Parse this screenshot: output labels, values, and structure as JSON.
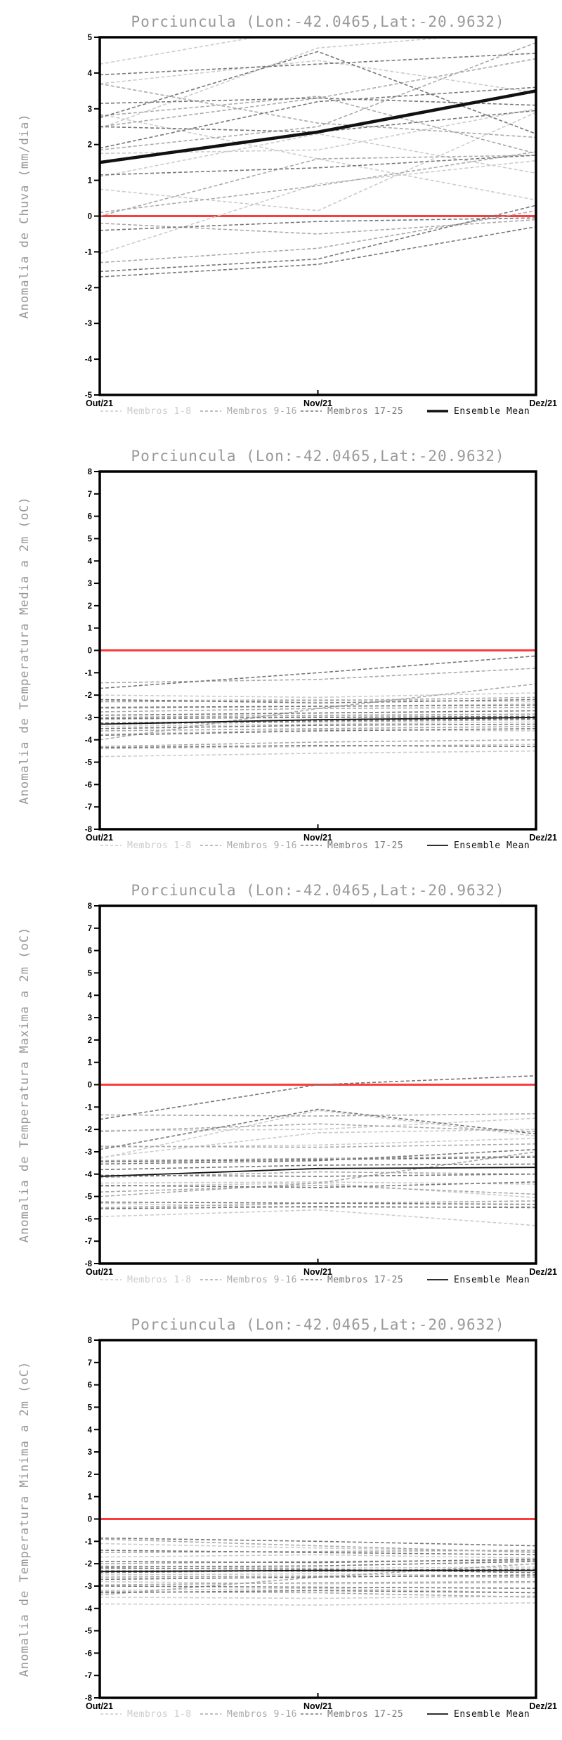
{
  "page": {
    "title": "Porciuncula (Lon:-42.0465,Lat:-20.9632)"
  },
  "legend": {
    "labels": [
      "Membros 1-8",
      "Membros 9-16",
      "Membros 17-25",
      "Ensemble Mean"
    ],
    "member_colors": [
      "#cccccc",
      "#aaaaaa",
      "#777777"
    ],
    "mean_color": "#111111"
  },
  "chart_data": [
    {
      "type": "line",
      "title": "Porciuncula (Lon:-42.0465,Lat:-20.9632)",
      "ylabel": "Anomalia de Chuva (mm/dia)",
      "ylim": [
        -5,
        5
      ],
      "ytick_step": 1,
      "x": [
        "Out/21",
        "Nov/21",
        "Dez/21"
      ],
      "grid": false,
      "legend_position": "bottom",
      "zero_line_color": "#fa3c3c",
      "mean_style": "thick",
      "series": [
        {
          "name": "Membros 1-8",
          "color": "#cccccc",
          "members": [
            [
              4.25,
              5.3,
              6.2
            ],
            [
              3.7,
              4.35,
              3.45
            ],
            [
              2.85,
              1.6,
              0.45
            ],
            [
              2.45,
              4.7,
              5.2
            ],
            [
              1.75,
              1.85,
              3.0
            ],
            [
              1.1,
              2.3,
              1.2
            ],
            [
              0.75,
              0.15,
              2.9
            ],
            [
              -1.05,
              0.9,
              1.55
            ]
          ]
        },
        {
          "name": "Membros 9-16",
          "color": "#aaaaaa",
          "members": [
            [
              2.8,
              3.35,
              1.75
            ],
            [
              2.5,
              3.3,
              4.4
            ],
            [
              0.1,
              0.85,
              1.8
            ],
            [
              -0.2,
              -0.5,
              -0.1
            ],
            [
              -1.3,
              -0.9,
              0.15
            ],
            [
              3.7,
              2.6,
              2.2
            ],
            [
              0.0,
              1.6,
              1.7
            ],
            [
              1.85,
              2.5,
              4.85
            ]
          ]
        },
        {
          "name": "Membros 17-25",
          "color": "#777777",
          "members": [
            [
              3.95,
              4.25,
              4.55
            ],
            [
              3.15,
              3.3,
              3.1
            ],
            [
              2.75,
              4.6,
              2.3
            ],
            [
              2.5,
              2.35,
              2.95
            ],
            [
              1.15,
              1.35,
              1.7
            ],
            [
              -0.4,
              -0.15,
              -0.05
            ],
            [
              -1.55,
              -1.2,
              0.3
            ],
            [
              -1.7,
              -1.35,
              -0.3
            ],
            [
              1.9,
              3.2,
              3.6
            ]
          ]
        }
      ],
      "ensemble_mean": {
        "name": "Ensemble Mean",
        "values": [
          1.5,
          2.35,
          3.5
        ]
      }
    },
    {
      "type": "line",
      "title": "Porciuncula (Lon:-42.0465,Lat:-20.9632)",
      "ylabel": "Anomalia de Temperatura Media a 2m (oC)",
      "ylim": [
        -8,
        8
      ],
      "ytick_step": 1,
      "x": [
        "Out/21",
        "Nov/21",
        "Dez/21"
      ],
      "grid": false,
      "legend_position": "bottom",
      "zero_line_color": "#fa3c3c",
      "mean_style": "thin",
      "series": [
        {
          "name": "Membros 1-8",
          "color": "#cccccc",
          "members": [
            [
              -2.0,
              -2.1,
              -1.9
            ],
            [
              -2.25,
              -2.2,
              -2.3
            ],
            [
              -2.6,
              -2.5,
              -2.4
            ],
            [
              -3.1,
              -2.95,
              -2.85
            ],
            [
              -3.4,
              -3.3,
              -3.2
            ],
            [
              -3.75,
              -3.55,
              -3.6
            ],
            [
              -4.4,
              -4.3,
              -4.2
            ],
            [
              -4.75,
              -4.6,
              -4.5
            ]
          ]
        },
        {
          "name": "Membros 9-16",
          "color": "#aaaaaa",
          "members": [
            [
              -1.45,
              -1.3,
              -0.8
            ],
            [
              -2.3,
              -2.25,
              -2.1
            ],
            [
              -2.75,
              -2.6,
              -2.55
            ],
            [
              -3.0,
              -2.9,
              -2.85
            ],
            [
              -3.3,
              -3.2,
              -3.1
            ],
            [
              -3.6,
              -3.5,
              -3.4
            ],
            [
              -4.3,
              -4.1,
              -4.0
            ],
            [
              -4.0,
              -2.6,
              -1.5
            ]
          ]
        },
        {
          "name": "Membros 17-25",
          "color": "#777777",
          "members": [
            [
              -1.7,
              -1.0,
              -0.25
            ],
            [
              -2.2,
              -2.35,
              -2.2
            ],
            [
              -2.55,
              -2.5,
              -2.45
            ],
            [
              -2.9,
              -2.8,
              -2.7
            ],
            [
              -3.05,
              -3.0,
              -2.95
            ],
            [
              -3.25,
              -3.15,
              -3.05
            ],
            [
              -3.5,
              -3.35,
              -3.3
            ],
            [
              -3.8,
              -3.6,
              -3.5
            ],
            [
              -4.35,
              -4.25,
              -4.3
            ]
          ]
        }
      ],
      "ensemble_mean": {
        "name": "Ensemble Mean",
        "values": [
          -3.3,
          -3.1,
          -3.0
        ]
      }
    },
    {
      "type": "line",
      "title": "Porciuncula (Lon:-42.0465,Lat:-20.9632)",
      "ylabel": "Anomalia de Temperatura Maxima a 2m (oC)",
      "ylim": [
        -8,
        8
      ],
      "ytick_step": 1,
      "x": [
        "Out/21",
        "Nov/21",
        "Dez/21"
      ],
      "grid": false,
      "legend_position": "bottom",
      "zero_line_color": "#fa3c3c",
      "mean_style": "thin",
      "series": [
        {
          "name": "Membros 1-8",
          "color": "#cccccc",
          "members": [
            [
              -3.3,
              -1.15,
              -2.3
            ],
            [
              -2.05,
              -2.0,
              -1.5
            ],
            [
              -3.25,
              -2.15,
              -2.0
            ],
            [
              -4.55,
              -4.4,
              -5.05
            ],
            [
              -5.3,
              -5.5,
              -5.45
            ],
            [
              -5.9,
              -5.6,
              -6.3
            ],
            [
              -4.4,
              -4.35,
              -4.45
            ],
            [
              -2.8,
              -2.7,
              -2.4
            ]
          ]
        },
        {
          "name": "Membros 9-16",
          "color": "#aaaaaa",
          "members": [
            [
              -1.35,
              -1.4,
              -1.3
            ],
            [
              -2.1,
              -1.75,
              -2.1
            ],
            [
              -2.75,
              -2.8,
              -2.65
            ],
            [
              -3.4,
              -3.3,
              -3.2
            ],
            [
              -4.15,
              -3.9,
              -4.0
            ],
            [
              -4.8,
              -4.5,
              -4.9
            ],
            [
              -5.5,
              -5.3,
              -5.2
            ],
            [
              -5.0,
              -4.4,
              -3.0
            ]
          ]
        },
        {
          "name": "Membros 17-25",
          "color": "#777777",
          "members": [
            [
              -1.55,
              0.0,
              0.4
            ],
            [
              -2.9,
              -1.1,
              -2.2
            ],
            [
              -3.45,
              -3.35,
              -3.25
            ],
            [
              -3.8,
              -3.6,
              -3.55
            ],
            [
              -4.05,
              -4.1,
              -4.0
            ],
            [
              -4.5,
              -4.6,
              -4.35
            ],
            [
              -5.25,
              -5.3,
              -5.35
            ],
            [
              -5.55,
              -5.45,
              -5.5
            ],
            [
              -3.55,
              -3.4,
              -2.9
            ]
          ]
        }
      ],
      "ensemble_mean": {
        "name": "Ensemble Mean",
        "values": [
          -4.1,
          -3.75,
          -3.7
        ]
      }
    },
    {
      "type": "line",
      "title": "Porciuncula (Lon:-42.0465,Lat:-20.9632)",
      "ylabel": "Anomalia de Temperatura Minima a 2m (oC)",
      "ylim": [
        -8,
        8
      ],
      "ytick_step": 1,
      "x": [
        "Out/21",
        "Nov/21",
        "Dez/21"
      ],
      "grid": false,
      "legend_position": "bottom",
      "zero_line_color": "#fa3c3c",
      "mean_style": "thin",
      "series": [
        {
          "name": "Membros 1-8",
          "color": "#cccccc",
          "members": [
            [
              -1.1,
              -1.3,
              -1.45
            ],
            [
              -1.7,
              -1.6,
              -1.75
            ],
            [
              -2.1,
              -2.2,
              -2.15
            ],
            [
              -2.5,
              -2.45,
              -2.55
            ],
            [
              -2.8,
              -2.9,
              -2.85
            ],
            [
              -3.2,
              -3.1,
              -3.3
            ],
            [
              -3.5,
              -3.55,
              -3.45
            ],
            [
              -3.8,
              -3.85,
              -3.75
            ]
          ]
        },
        {
          "name": "Membros 9-16",
          "color": "#aaaaaa",
          "members": [
            [
              -0.9,
              -1.2,
              -1.5
            ],
            [
              -1.5,
              -1.45,
              -1.4
            ],
            [
              -2.0,
              -1.9,
              -1.85
            ],
            [
              -2.3,
              -2.35,
              -2.3
            ],
            [
              -2.6,
              -2.55,
              -2.6
            ],
            [
              -2.95,
              -2.85,
              -2.8
            ],
            [
              -3.25,
              -3.3,
              -3.5
            ],
            [
              -3.4,
              -2.6,
              -2.0
            ]
          ]
        },
        {
          "name": "Membros 17-25",
          "color": "#777777",
          "members": [
            [
              -0.85,
              -1.0,
              -1.2
            ],
            [
              -1.4,
              -1.5,
              -1.6
            ],
            [
              -1.9,
              -1.95,
              -1.8
            ],
            [
              -2.15,
              -2.1,
              -1.9
            ],
            [
              -2.4,
              -2.3,
              -2.25
            ],
            [
              -2.7,
              -2.6,
              -2.5
            ],
            [
              -3.0,
              -3.05,
              -3.1
            ],
            [
              -3.3,
              -3.2,
              -3.3
            ],
            [
              -2.2,
              -2.25,
              -2.4
            ]
          ]
        }
      ],
      "ensemble_mean": {
        "name": "Ensemble Mean",
        "values": [
          -2.35,
          -2.3,
          -2.3
        ]
      }
    }
  ]
}
